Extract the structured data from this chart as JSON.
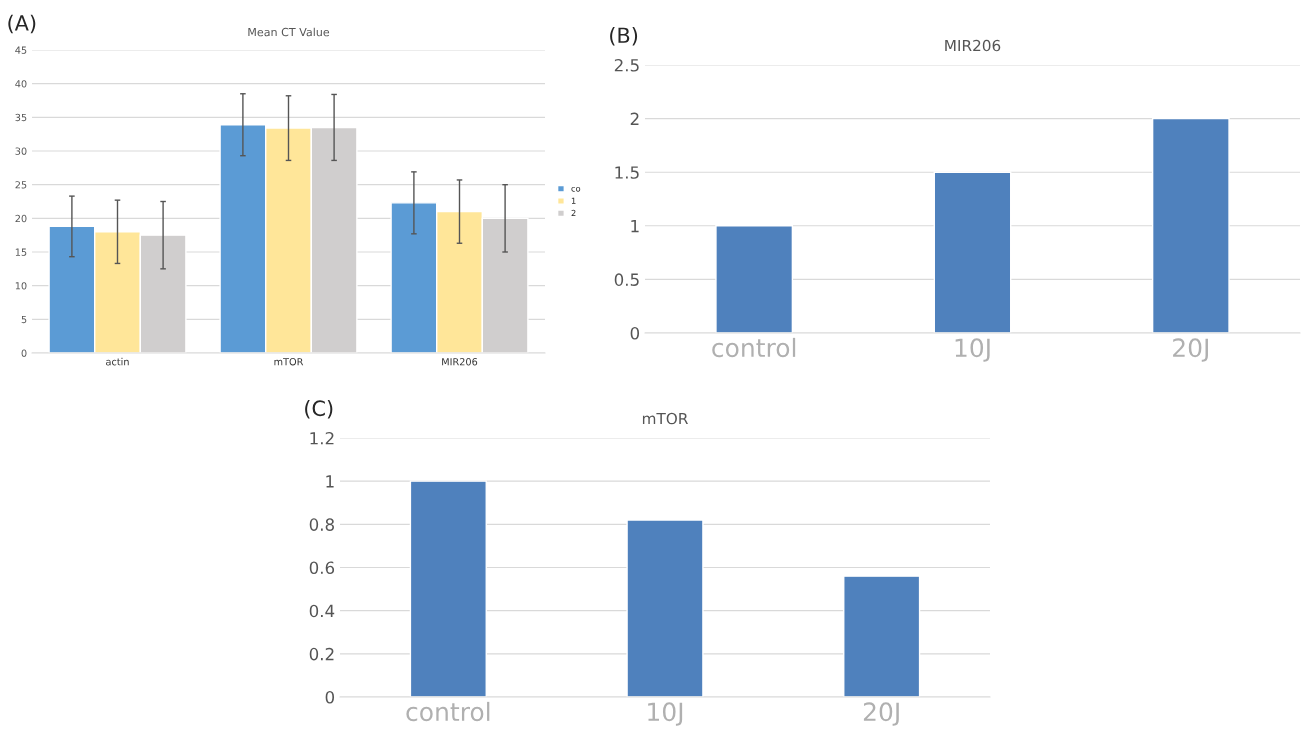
{
  "chart_data": [
    {
      "type": "bar",
      "title": "Mean CT Value",
      "annotations": [
        "(A)"
      ],
      "categories": [
        "actin",
        "mTOR",
        "MIR206"
      ],
      "ylim": [
        0,
        45
      ],
      "yticks": [
        0,
        5,
        10,
        15,
        20,
        25,
        30,
        35,
        40,
        45
      ],
      "grid": "y",
      "legend": "right",
      "series": [
        {
          "name": "co",
          "color": "#5b9bd5",
          "values": [
            18.8,
            33.9,
            22.3
          ],
          "errors": [
            4.5,
            4.6,
            4.6
          ]
        },
        {
          "name": "1",
          "color": "#ffe699",
          "values": [
            18.0,
            33.4,
            21.0
          ],
          "errors": [
            4.7,
            4.8,
            4.7
          ]
        },
        {
          "name": "2",
          "color": "#d0cece",
          "values": [
            17.5,
            33.5,
            20.0
          ],
          "errors": [
            5.0,
            4.9,
            5.0
          ]
        }
      ]
    },
    {
      "type": "bar",
      "title": "MIR206",
      "annotations": [
        "(B)"
      ],
      "categories": [
        "control",
        "10J",
        "20J"
      ],
      "ylim": [
        0,
        2.5
      ],
      "yticks": [
        0,
        0.5,
        1,
        1.5,
        2,
        2.5
      ],
      "grid": "y",
      "series": [
        {
          "color": "#4f81bd",
          "values": [
            1,
            1.5,
            2
          ]
        }
      ]
    },
    {
      "type": "bar",
      "title": "mTOR",
      "annotations": [
        "(C)"
      ],
      "categories": [
        "control",
        "10J",
        "20J"
      ],
      "ylim": [
        0,
        1.2
      ],
      "yticks": [
        0,
        0.2,
        0.4,
        0.6,
        0.8,
        1,
        1.2
      ],
      "grid": "y",
      "series": [
        {
          "color": "#4f81bd",
          "values": [
            1,
            0.82,
            0.56
          ]
        }
      ]
    }
  ]
}
